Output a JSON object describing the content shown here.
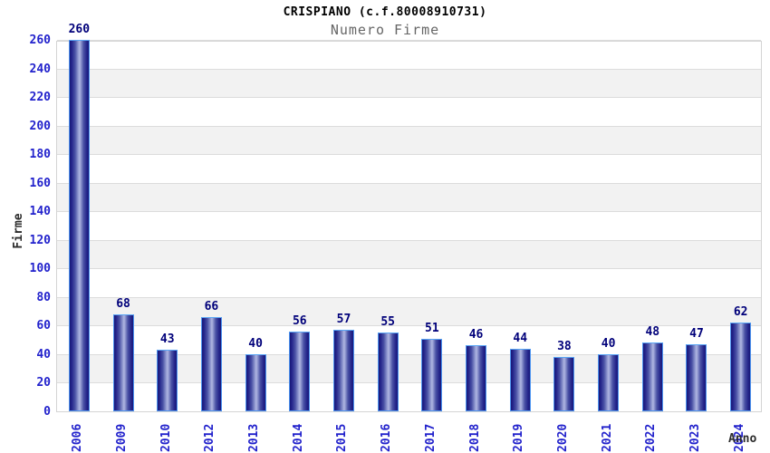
{
  "header": {
    "title": "CRISPIANO (c.f.80008910731)",
    "subtitle": "Numero Firme"
  },
  "chart_data": {
    "type": "bar",
    "title": "CRISPIANO (c.f.80008910731)",
    "subtitle": "Numero Firme",
    "xlabel": "Anno",
    "ylabel": "Firme",
    "categories": [
      "2006",
      "2009",
      "2010",
      "2012",
      "2013",
      "2014",
      "2015",
      "2016",
      "2017",
      "2018",
      "2019",
      "2020",
      "2021",
      "2022",
      "2023",
      "2024"
    ],
    "values": [
      260,
      68,
      43,
      66,
      40,
      56,
      57,
      55,
      51,
      46,
      44,
      38,
      40,
      48,
      47,
      62
    ],
    "ylim": [
      0,
      260
    ],
    "ytick_step": 20,
    "grid": "horizontal alternating bands",
    "legend": "none",
    "colors": {
      "bar_edge_dark": "#181878",
      "bar_center_light": "#b0b7e2",
      "bar_outline": "#4d94f0",
      "tick_label_blue": "#2222cc",
      "value_label_navy": "#00007a",
      "band_gray": "#f2f2f2",
      "gridline": "#dcdcdc",
      "plot_border": "#d4d4d4",
      "title": "#000000",
      "subtitle": "#666666",
      "axis_title": "#2b2b2b",
      "background": "#ffffff"
    }
  }
}
